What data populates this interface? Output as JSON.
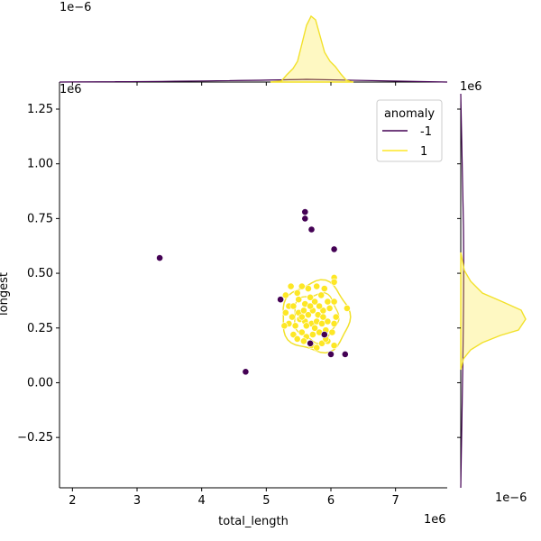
{
  "chart_data": {
    "type": "scatter",
    "xlabel": "total_length",
    "ylabel": "longest",
    "x_offset_label": "1e6",
    "y_offset_label": "1e6",
    "xlim": [
      1.8,
      7.8
    ],
    "ylim": [
      -0.48,
      1.32
    ],
    "xticks": [
      2,
      3,
      4,
      5,
      6,
      7
    ],
    "xtick_labels": [
      "2",
      "3",
      "4",
      "5",
      "6",
      "7"
    ],
    "yticks": [
      -0.25,
      0.0,
      0.25,
      0.5,
      0.75,
      1.0,
      1.25
    ],
    "ytick_labels": [
      "−0.25",
      "0.00",
      "0.25",
      "0.50",
      "0.75",
      "1.00",
      "1.25"
    ],
    "top_marginal_offset_label": "1e−6",
    "right_top_offset_label": "1e6",
    "right_marginal_offset_label": "1e−6",
    "legend": {
      "title": "anomaly",
      "position": "top-right",
      "entries": [
        {
          "label": "-1",
          "color": "#440154"
        },
        {
          "label": "1",
          "color": "#fde725"
        }
      ]
    },
    "series": [
      {
        "name": "-1",
        "color": "#440154",
        "points": [
          [
            3.35,
            0.57
          ],
          [
            4.68,
            0.05
          ],
          [
            5.22,
            0.38
          ],
          [
            5.6,
            0.78
          ],
          [
            5.6,
            0.75
          ],
          [
            5.7,
            0.7
          ],
          [
            6.05,
            0.61
          ],
          [
            5.9,
            0.22
          ],
          [
            6.0,
            0.13
          ],
          [
            6.22,
            0.13
          ],
          [
            5.68,
            0.18
          ]
        ]
      },
      {
        "name": "1",
        "color": "#fde725",
        "points": [
          [
            5.3,
            0.4
          ],
          [
            5.38,
            0.44
          ],
          [
            5.55,
            0.44
          ],
          [
            5.65,
            0.43
          ],
          [
            5.78,
            0.44
          ],
          [
            5.9,
            0.43
          ],
          [
            6.05,
            0.48
          ],
          [
            6.05,
            0.46
          ],
          [
            6.25,
            0.34
          ],
          [
            5.35,
            0.35
          ],
          [
            5.42,
            0.35
          ],
          [
            5.5,
            0.38
          ],
          [
            5.6,
            0.36
          ],
          [
            5.68,
            0.39
          ],
          [
            5.75,
            0.37
          ],
          [
            5.85,
            0.4
          ],
          [
            5.95,
            0.37
          ],
          [
            6.05,
            0.37
          ],
          [
            5.3,
            0.32
          ],
          [
            5.4,
            0.3
          ],
          [
            5.5,
            0.32
          ],
          [
            5.58,
            0.33
          ],
          [
            5.65,
            0.31
          ],
          [
            5.72,
            0.33
          ],
          [
            5.8,
            0.31
          ],
          [
            5.88,
            0.33
          ],
          [
            5.98,
            0.34
          ],
          [
            6.08,
            0.3
          ],
          [
            5.35,
            0.27
          ],
          [
            5.45,
            0.26
          ],
          [
            5.52,
            0.29
          ],
          [
            5.6,
            0.28
          ],
          [
            5.7,
            0.27
          ],
          [
            5.78,
            0.28
          ],
          [
            5.86,
            0.27
          ],
          [
            5.95,
            0.28
          ],
          [
            6.05,
            0.27
          ],
          [
            5.28,
            0.26
          ],
          [
            5.42,
            0.22
          ],
          [
            5.55,
            0.23
          ],
          [
            5.62,
            0.21
          ],
          [
            5.72,
            0.22
          ],
          [
            5.82,
            0.23
          ],
          [
            5.92,
            0.24
          ],
          [
            6.02,
            0.23
          ],
          [
            5.48,
            0.2
          ],
          [
            5.58,
            0.19
          ],
          [
            5.7,
            0.17
          ],
          [
            5.78,
            0.16
          ],
          [
            5.86,
            0.18
          ],
          [
            5.95,
            0.19
          ],
          [
            6.05,
            0.17
          ],
          [
            5.62,
            0.26
          ],
          [
            5.75,
            0.25
          ],
          [
            5.88,
            0.3
          ],
          [
            5.48,
            0.41
          ],
          [
            5.92,
            0.2
          ],
          [
            5.55,
            0.3
          ],
          [
            5.68,
            0.35
          ],
          [
            5.82,
            0.35
          ]
        ]
      }
    ],
    "density_series": "1",
    "density_contour_level": "outer"
  }
}
